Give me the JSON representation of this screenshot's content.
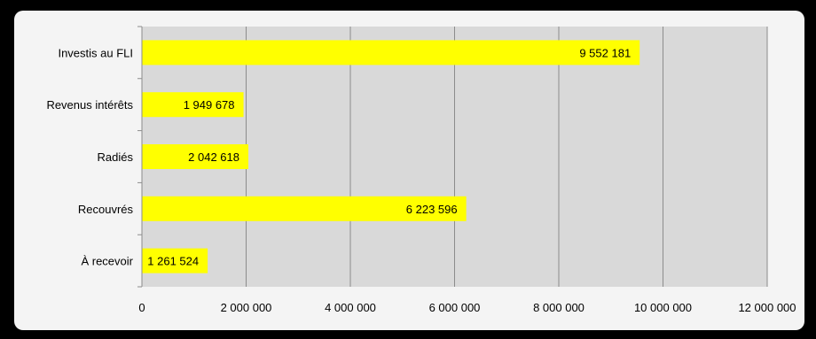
{
  "chart_data": {
    "type": "bar",
    "orientation": "horizontal",
    "categories": [
      "Investis au FLI",
      "Revenus intérêts",
      "Radiés",
      "Recouvrés",
      "À recevoir"
    ],
    "values": [
      9552181,
      1949678,
      2042618,
      6223596,
      1261524
    ],
    "data_labels": [
      "9 552 181",
      "1 949 678",
      "2 042 618",
      "6 223 596",
      "1 261 524"
    ],
    "x_ticks": [
      0,
      2000000,
      4000000,
      6000000,
      8000000,
      10000000,
      12000000
    ],
    "x_tick_labels": [
      "0",
      "2 000 000",
      "4 000 000",
      "6 000 000",
      "8 000 000",
      "10 000 000",
      "12 000 000"
    ],
    "xlim": [
      0,
      12000000
    ],
    "grid": "vertical",
    "legend": "none",
    "title": "",
    "xlabel": "",
    "ylabel": "",
    "colors": {
      "bar": "#ffff00",
      "plot_background": "#d9d9d9",
      "card_background": "#f4f4f4",
      "frame": "#000000",
      "gridline": "#8c8c8c"
    }
  }
}
